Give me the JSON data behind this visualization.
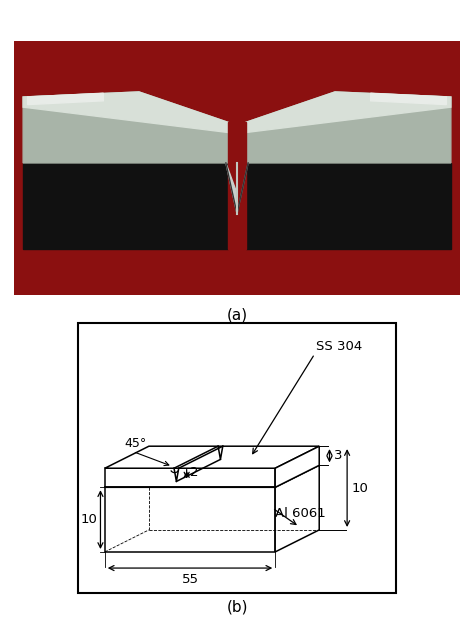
{
  "fig_width": 4.74,
  "fig_height": 6.34,
  "background": "#ffffff",
  "label_a": "(a)",
  "label_b": "(b)",
  "dim_55": "55",
  "dim_10_left": "10",
  "dim_10_right": "10",
  "dim_3": "3",
  "dim_2": "2",
  "dim_45": "45°",
  "label_ss": "SS 304",
  "label_al": "Al 6061"
}
